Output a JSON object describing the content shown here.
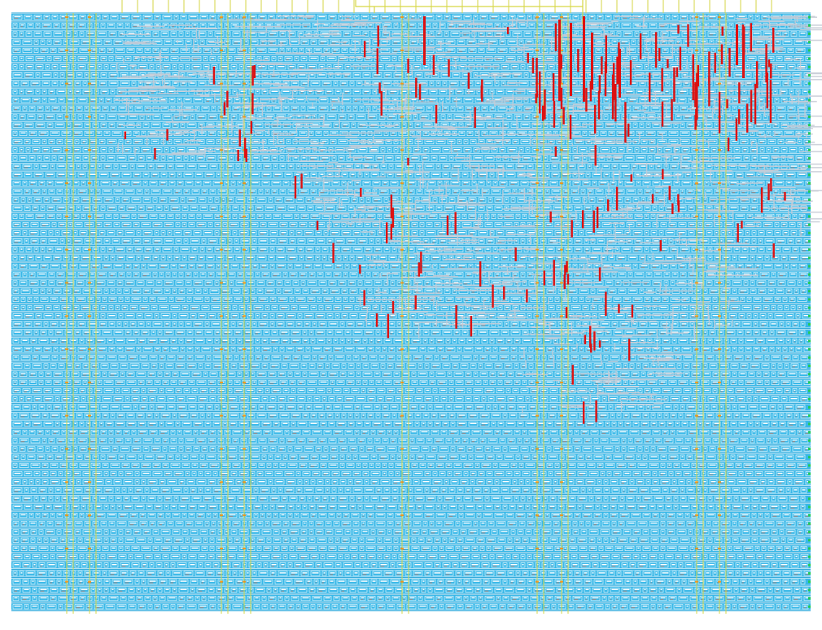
{
  "view": {
    "background": "#ffffff",
    "colors": {
      "cell_fill": "#39b8e8",
      "cell_stripe": "#ffffff",
      "cell_text_gray": "#8a8f96",
      "power_rail": "#1a9fd6",
      "track_yellow": "#d6d645",
      "net_gray": "#c7cbd6",
      "hotspot_red": "#dd1111",
      "pin_green": "#22cc55",
      "pin_orange": "#ff8800"
    },
    "layers": [
      "standard-cells",
      "power-rails",
      "routing-gray",
      "vertical-tracks-yellow",
      "io-pins",
      "congestion-hotspots-red"
    ]
  }
}
